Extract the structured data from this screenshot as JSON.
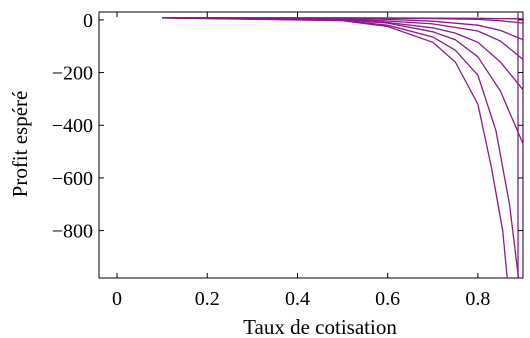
{
  "chart_data": {
    "type": "line",
    "xlabel": "Taux de cotisation",
    "ylabel": "Profit espéré",
    "xlim": [
      -0.04,
      0.9
    ],
    "ylim": [
      -980,
      30
    ],
    "x_ticks": [
      {
        "value": 0,
        "label": "0"
      },
      {
        "value": 0.2,
        "label": "0.2"
      },
      {
        "value": 0.4,
        "label": "0.4"
      },
      {
        "value": 0.6,
        "label": "0.6"
      },
      {
        "value": 0.8,
        "label": "0.8"
      }
    ],
    "y_ticks": [
      {
        "value": 0,
        "label": "0"
      },
      {
        "value": -200,
        "label": "−200"
      },
      {
        "value": -400,
        "label": "−400"
      },
      {
        "value": -600,
        "label": "−600"
      },
      {
        "value": -800,
        "label": "−800"
      }
    ],
    "grid": false,
    "line_color": "#8b1a8b",
    "series": [
      {
        "values": [
          [
            0.1,
            8
          ],
          [
            0.5,
            8
          ],
          [
            0.7,
            7
          ],
          [
            0.8,
            6
          ],
          [
            0.85,
            5
          ],
          [
            0.9,
            4
          ]
        ]
      },
      {
        "values": [
          [
            0.1,
            8
          ],
          [
            0.5,
            7
          ],
          [
            0.7,
            5
          ],
          [
            0.8,
            2
          ],
          [
            0.85,
            -3
          ],
          [
            0.9,
            -12
          ]
        ]
      },
      {
        "values": [
          [
            0.1,
            8
          ],
          [
            0.5,
            6
          ],
          [
            0.6,
            2
          ],
          [
            0.7,
            -5
          ],
          [
            0.8,
            -20
          ],
          [
            0.85,
            -40
          ],
          [
            0.9,
            -75
          ]
        ]
      },
      {
        "values": [
          [
            0.1,
            8
          ],
          [
            0.5,
            4
          ],
          [
            0.6,
            -4
          ],
          [
            0.7,
            -15
          ],
          [
            0.8,
            -42
          ],
          [
            0.85,
            -80
          ],
          [
            0.9,
            -150
          ]
        ]
      },
      {
        "values": [
          [
            0.1,
            8
          ],
          [
            0.5,
            2
          ],
          [
            0.6,
            -10
          ],
          [
            0.7,
            -30
          ],
          [
            0.75,
            -50
          ],
          [
            0.8,
            -85
          ],
          [
            0.85,
            -160
          ],
          [
            0.9,
            -265
          ]
        ]
      },
      {
        "values": [
          [
            0.1,
            8
          ],
          [
            0.5,
            0
          ],
          [
            0.6,
            -12
          ],
          [
            0.7,
            -45
          ],
          [
            0.75,
            -75
          ],
          [
            0.8,
            -140
          ],
          [
            0.85,
            -270
          ],
          [
            0.9,
            -470
          ]
        ]
      },
      {
        "values": [
          [
            0.1,
            8
          ],
          [
            0.5,
            -2
          ],
          [
            0.6,
            -20
          ],
          [
            0.7,
            -65
          ],
          [
            0.75,
            -115
          ],
          [
            0.8,
            -210
          ],
          [
            0.84,
            -420
          ],
          [
            0.87,
            -700
          ],
          [
            0.89,
            -980
          ]
        ]
      },
      {
        "values": [
          [
            0.1,
            8
          ],
          [
            0.5,
            -3
          ],
          [
            0.6,
            -25
          ],
          [
            0.7,
            -85
          ],
          [
            0.75,
            -160
          ],
          [
            0.8,
            -320
          ],
          [
            0.83,
            -560
          ],
          [
            0.855,
            -800
          ],
          [
            0.865,
            -980
          ]
        ]
      },
      {
        "values": [
          [
            0.889,
            30
          ],
          [
            0.889,
            -980
          ]
        ]
      }
    ]
  }
}
